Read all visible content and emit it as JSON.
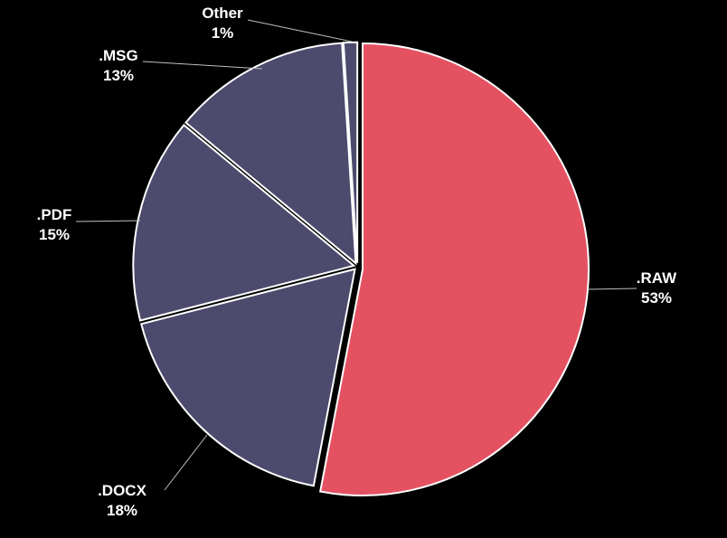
{
  "chart_data": {
    "type": "pie",
    "title": "",
    "slices": [
      {
        "label": ".RAW",
        "value": 53,
        "display": "53%",
        "color": "#e45262",
        "exploded": false
      },
      {
        "label": ".DOCX",
        "value": 18,
        "display": "18%",
        "color": "#4c4b6e",
        "exploded": true
      },
      {
        "label": ".PDF",
        "value": 15,
        "display": "15%",
        "color": "#4c4b6e",
        "exploded": true
      },
      {
        "label": ".MSG",
        "value": 13,
        "display": "13%",
        "color": "#4c4b6e",
        "exploded": true
      },
      {
        "label": "Other",
        "value": 1,
        "display": "1%",
        "color": "#4c4b6e",
        "exploded": true
      }
    ],
    "start_angle": "12 o'clock",
    "direction": "clockwise",
    "data_labels": "outside with leader lines",
    "legend": "none",
    "background": "#000000",
    "slice_border_color": "#ffffff",
    "label_color": "#ffffff",
    "leader_line_color": "#bfbfbf"
  }
}
